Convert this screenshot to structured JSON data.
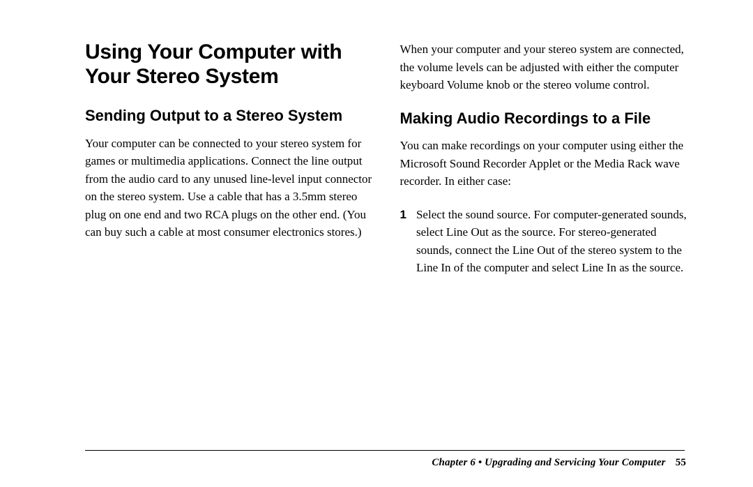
{
  "page": {
    "h1": "Using Your Computer with Your Stereo System",
    "left": {
      "h2": "Sending Output to a Stereo System",
      "p1": "Your computer can be connected to your stereo system for games or multimedia applications. Connect the line output from the audio card to any unused line-level input connector on the stereo system. Use a cable that has a 3.5mm stereo plug on one end and two RCA plugs on the other end. (You can buy such a cable at most consumer electronics stores.)"
    },
    "right": {
      "p0": "When your computer and your stereo system are connected, the volume levels can be adjusted with either the computer keyboard Volume knob or the stereo volume control.",
      "h2": "Making Audio Recordings to a File",
      "p1": "You can make recordings on your computer using either the Microsoft Sound Recorder Applet or the Media Rack wave recorder. In either case:",
      "step1_num": "1",
      "step1_body": "Select the sound source. For computer-generated sounds, select Line Out as the source. For stereo-generated sounds, connect the Line Out of the stereo system to the Line In of the computer and select Line In as the source."
    },
    "footer": {
      "chapter": "Chapter 6  •  Upgrading and Servicing Your Computer",
      "pagenum": "55"
    }
  }
}
